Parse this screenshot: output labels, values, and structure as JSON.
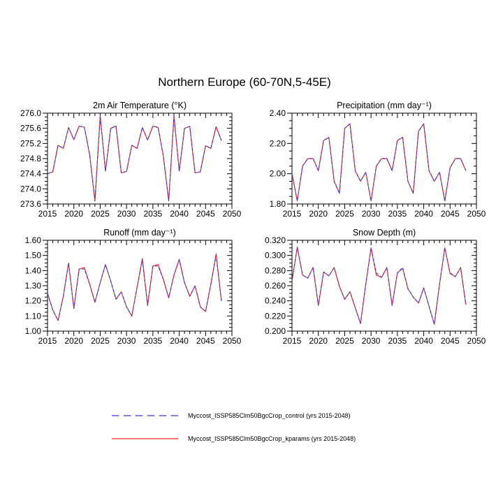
{
  "figure_title": "Northern Europe (60-70N,5-45E)",
  "colors": {
    "control_blue": "#3b3bd0",
    "kparams_red": "#f32222",
    "axis": "#000000",
    "background": "#ffffff"
  },
  "legend": {
    "entries": [
      {
        "label": "Myccost_ISSP585Clm50BgcCrop_control (yrs 2015-2048)",
        "style": "dashed",
        "color_key": "control_blue"
      },
      {
        "label": "Myccost_ISSP585Clm50BgcCrop_kparams (yrs 2015-2048)",
        "style": "solid",
        "color_key": "kparams_red"
      }
    ]
  },
  "chart_data": [
    {
      "type": "line",
      "title": "2m Air Temperature (°K)",
      "xlim": [
        2015,
        2050
      ],
      "xtick_major": 5,
      "xtick_minor": 1,
      "ylim": [
        273.6,
        276.0
      ],
      "ytick_major": 0.4,
      "ytick_minor": 0.1,
      "ytick_decimals": 1,
      "grid": false,
      "legend_position": "below-figure",
      "x": [
        2015,
        2016,
        2017,
        2018,
        2019,
        2020,
        2021,
        2022,
        2023,
        2024,
        2025,
        2026,
        2027,
        2028,
        2029,
        2030,
        2031,
        2032,
        2033,
        2034,
        2035,
        2036,
        2037,
        2038,
        2039,
        2040,
        2041,
        2042,
        2043,
        2044,
        2045,
        2046,
        2047,
        2048
      ],
      "series": [
        {
          "name": "Myccost_ISSP585Clm50BgcCrop_control",
          "style": "dashed",
          "color_key": "control_blue",
          "values": [
            274.4,
            274.45,
            275.15,
            275.07,
            275.62,
            275.3,
            275.66,
            275.63,
            274.9,
            273.68,
            275.92,
            274.47,
            275.6,
            275.66,
            274.42,
            274.46,
            275.15,
            275.07,
            275.62,
            275.29,
            275.66,
            275.62,
            274.85,
            273.68,
            275.92,
            274.47,
            275.6,
            275.65,
            274.42,
            274.45,
            275.14,
            275.07,
            275.64,
            275.28
          ]
        },
        {
          "name": "Myccost_ISSP585Clm50BgcCrop_kparams",
          "style": "solid",
          "color_key": "kparams_red",
          "values": [
            274.4,
            274.45,
            275.15,
            275.07,
            275.62,
            275.3,
            275.66,
            275.63,
            274.9,
            273.68,
            275.92,
            274.47,
            275.6,
            275.66,
            274.42,
            274.46,
            275.15,
            275.07,
            275.62,
            275.29,
            275.66,
            275.62,
            274.85,
            273.68,
            275.92,
            274.47,
            275.6,
            275.65,
            274.42,
            274.45,
            275.14,
            275.07,
            275.64,
            275.28
          ]
        }
      ]
    },
    {
      "type": "line",
      "title": "Precipitation (mm day⁻¹)",
      "xlim": [
        2015,
        2050
      ],
      "xtick_major": 5,
      "xtick_minor": 1,
      "ylim": [
        1.8,
        2.4
      ],
      "ytick_major": 0.2,
      "ytick_minor": 0.05,
      "ytick_decimals": 2,
      "grid": false,
      "legend_position": "below-figure",
      "x": [
        2015,
        2016,
        2017,
        2018,
        2019,
        2020,
        2021,
        2022,
        2023,
        2024,
        2025,
        2026,
        2027,
        2028,
        2029,
        2030,
        2031,
        2032,
        2033,
        2034,
        2035,
        2036,
        2037,
        2038,
        2039,
        2040,
        2041,
        2042,
        2043,
        2044,
        2045,
        2046,
        2047,
        2048
      ],
      "series": [
        {
          "name": "Myccost_ISSP585Clm50BgcCrop_control",
          "style": "dashed",
          "color_key": "control_blue",
          "values": [
            2.0,
            1.82,
            2.05,
            2.1,
            2.1,
            2.02,
            2.22,
            2.24,
            1.95,
            1.87,
            2.3,
            2.33,
            2.02,
            1.95,
            2.01,
            1.82,
            2.05,
            2.1,
            2.1,
            2.02,
            2.22,
            2.24,
            1.95,
            1.87,
            2.28,
            2.33,
            2.02,
            1.95,
            2.01,
            1.82,
            2.04,
            2.1,
            2.1,
            2.02
          ]
        },
        {
          "name": "Myccost_ISSP585Clm50BgcCrop_kparams",
          "style": "solid",
          "color_key": "kparams_red",
          "values": [
            2.0,
            1.82,
            2.05,
            2.1,
            2.1,
            2.02,
            2.22,
            2.24,
            1.95,
            1.87,
            2.3,
            2.33,
            2.02,
            1.95,
            2.01,
            1.82,
            2.05,
            2.1,
            2.1,
            2.02,
            2.22,
            2.24,
            1.95,
            1.87,
            2.28,
            2.33,
            2.02,
            1.95,
            2.01,
            1.82,
            2.04,
            2.1,
            2.1,
            2.02
          ]
        }
      ]
    },
    {
      "type": "line",
      "title": "Runoff (mm day⁻¹)",
      "xlim": [
        2015,
        2050
      ],
      "xtick_major": 5,
      "xtick_minor": 1,
      "ylim": [
        1.0,
        1.6
      ],
      "ytick_major": 0.1,
      "ytick_minor": 0.025,
      "ytick_decimals": 2,
      "grid": false,
      "legend_position": "below-figure",
      "x": [
        2015,
        2016,
        2017,
        2018,
        2019,
        2020,
        2021,
        2022,
        2023,
        2024,
        2025,
        2026,
        2027,
        2028,
        2029,
        2030,
        2031,
        2032,
        2033,
        2034,
        2035,
        2036,
        2037,
        2038,
        2039,
        2040,
        2041,
        2042,
        2043,
        2044,
        2045,
        2046,
        2047,
        2048
      ],
      "series": [
        {
          "name": "Myccost_ISSP585Clm50BgcCrop_control",
          "style": "dashed",
          "color_key": "control_blue",
          "values": [
            1.25,
            1.14,
            1.07,
            1.23,
            1.45,
            1.15,
            1.41,
            1.41,
            1.31,
            1.19,
            1.32,
            1.44,
            1.33,
            1.21,
            1.26,
            1.16,
            1.1,
            1.29,
            1.47,
            1.17,
            1.43,
            1.43,
            1.34,
            1.22,
            1.37,
            1.47,
            1.32,
            1.23,
            1.3,
            1.16,
            1.13,
            1.31,
            1.5,
            1.2
          ]
        },
        {
          "name": "Myccost_ISSP585Clm50BgcCrop_kparams",
          "style": "solid",
          "color_key": "kparams_red",
          "values": [
            1.25,
            1.14,
            1.07,
            1.23,
            1.45,
            1.15,
            1.41,
            1.42,
            1.31,
            1.19,
            1.32,
            1.44,
            1.33,
            1.21,
            1.26,
            1.16,
            1.1,
            1.29,
            1.48,
            1.17,
            1.43,
            1.44,
            1.34,
            1.22,
            1.37,
            1.475,
            1.32,
            1.23,
            1.3,
            1.16,
            1.13,
            1.31,
            1.51,
            1.2
          ]
        }
      ]
    },
    {
      "type": "line",
      "title": "Snow Depth (m)",
      "xlim": [
        2015,
        2050
      ],
      "xtick_major": 5,
      "xtick_minor": 1,
      "ylim": [
        0.2,
        0.32
      ],
      "ytick_major": 0.02,
      "ytick_minor": 0.005,
      "ytick_decimals": 3,
      "grid": false,
      "legend_position": "below-figure",
      "x": [
        2015,
        2016,
        2017,
        2018,
        2019,
        2020,
        2021,
        2022,
        2023,
        2024,
        2025,
        2026,
        2027,
        2028,
        2029,
        2030,
        2031,
        2032,
        2033,
        2034,
        2035,
        2036,
        2037,
        2038,
        2039,
        2040,
        2041,
        2042,
        2043,
        2044,
        2045,
        2046,
        2047,
        2048
      ],
      "series": [
        {
          "name": "Myccost_ISSP585Clm50BgcCrop_control",
          "style": "dashed",
          "color_key": "control_blue",
          "values": [
            0.266,
            0.311,
            0.274,
            0.27,
            0.284,
            0.234,
            0.278,
            0.273,
            0.284,
            0.259,
            0.242,
            0.252,
            0.231,
            0.21,
            0.262,
            0.31,
            0.277,
            0.271,
            0.284,
            0.234,
            0.277,
            0.284,
            0.256,
            0.245,
            0.237,
            0.257,
            0.233,
            0.209,
            0.262,
            0.31,
            0.277,
            0.272,
            0.284,
            0.235
          ]
        },
        {
          "name": "Myccost_ISSP585Clm50BgcCrop_kparams",
          "style": "solid",
          "color_key": "kparams_red",
          "values": [
            0.266,
            0.311,
            0.274,
            0.27,
            0.284,
            0.234,
            0.278,
            0.273,
            0.284,
            0.259,
            0.242,
            0.252,
            0.231,
            0.21,
            0.262,
            0.31,
            0.274,
            0.271,
            0.284,
            0.234,
            0.277,
            0.283,
            0.256,
            0.245,
            0.237,
            0.257,
            0.233,
            0.209,
            0.262,
            0.31,
            0.276,
            0.272,
            0.284,
            0.235
          ]
        }
      ]
    }
  ]
}
